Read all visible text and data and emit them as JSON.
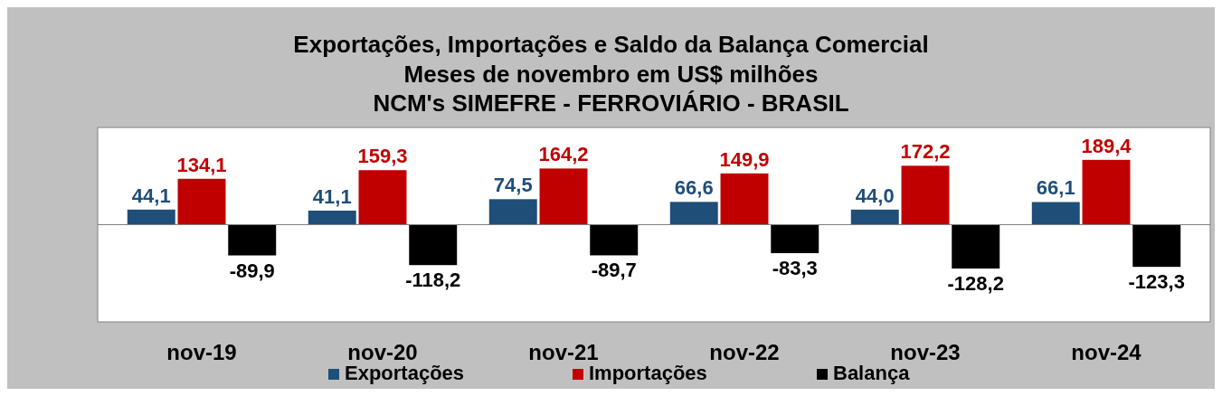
{
  "chart_data": {
    "type": "bar",
    "title": "Exportações, Importações e Saldo da Balança Comercial",
    "subtitle": "Meses de novembro em US$ milhões\nNCM's SIMEFRE - FERROVIÁRIO - BRASIL",
    "categories": [
      "nov-19",
      "nov-20",
      "nov-21",
      "nov-22",
      "nov-23",
      "nov-24"
    ],
    "series": [
      {
        "name": "Exportações",
        "color": "#1f4e79",
        "values": [
          44.1,
          41.1,
          74.5,
          66.6,
          44.0,
          66.1
        ],
        "value_labels": [
          "44,1",
          "41,1",
          "74,5",
          "66,6",
          "44,0",
          "66,1"
        ]
      },
      {
        "name": "Importações",
        "color": "#c00000",
        "values": [
          134.1,
          159.3,
          164.2,
          149.9,
          172.2,
          189.4
        ],
        "value_labels": [
          "134,1",
          "159,3",
          "164,2",
          "149,9",
          "172,2",
          "189,4"
        ]
      },
      {
        "name": "Balança",
        "color": "#000000",
        "values": [
          -89.9,
          -118.2,
          -89.7,
          -83.3,
          -128.2,
          -123.3
        ],
        "value_labels": [
          "-89,9",
          "-118,2",
          "-89,7",
          "-83,3",
          "-128,2",
          "-123,3"
        ]
      }
    ],
    "legend": "bottom"
  }
}
